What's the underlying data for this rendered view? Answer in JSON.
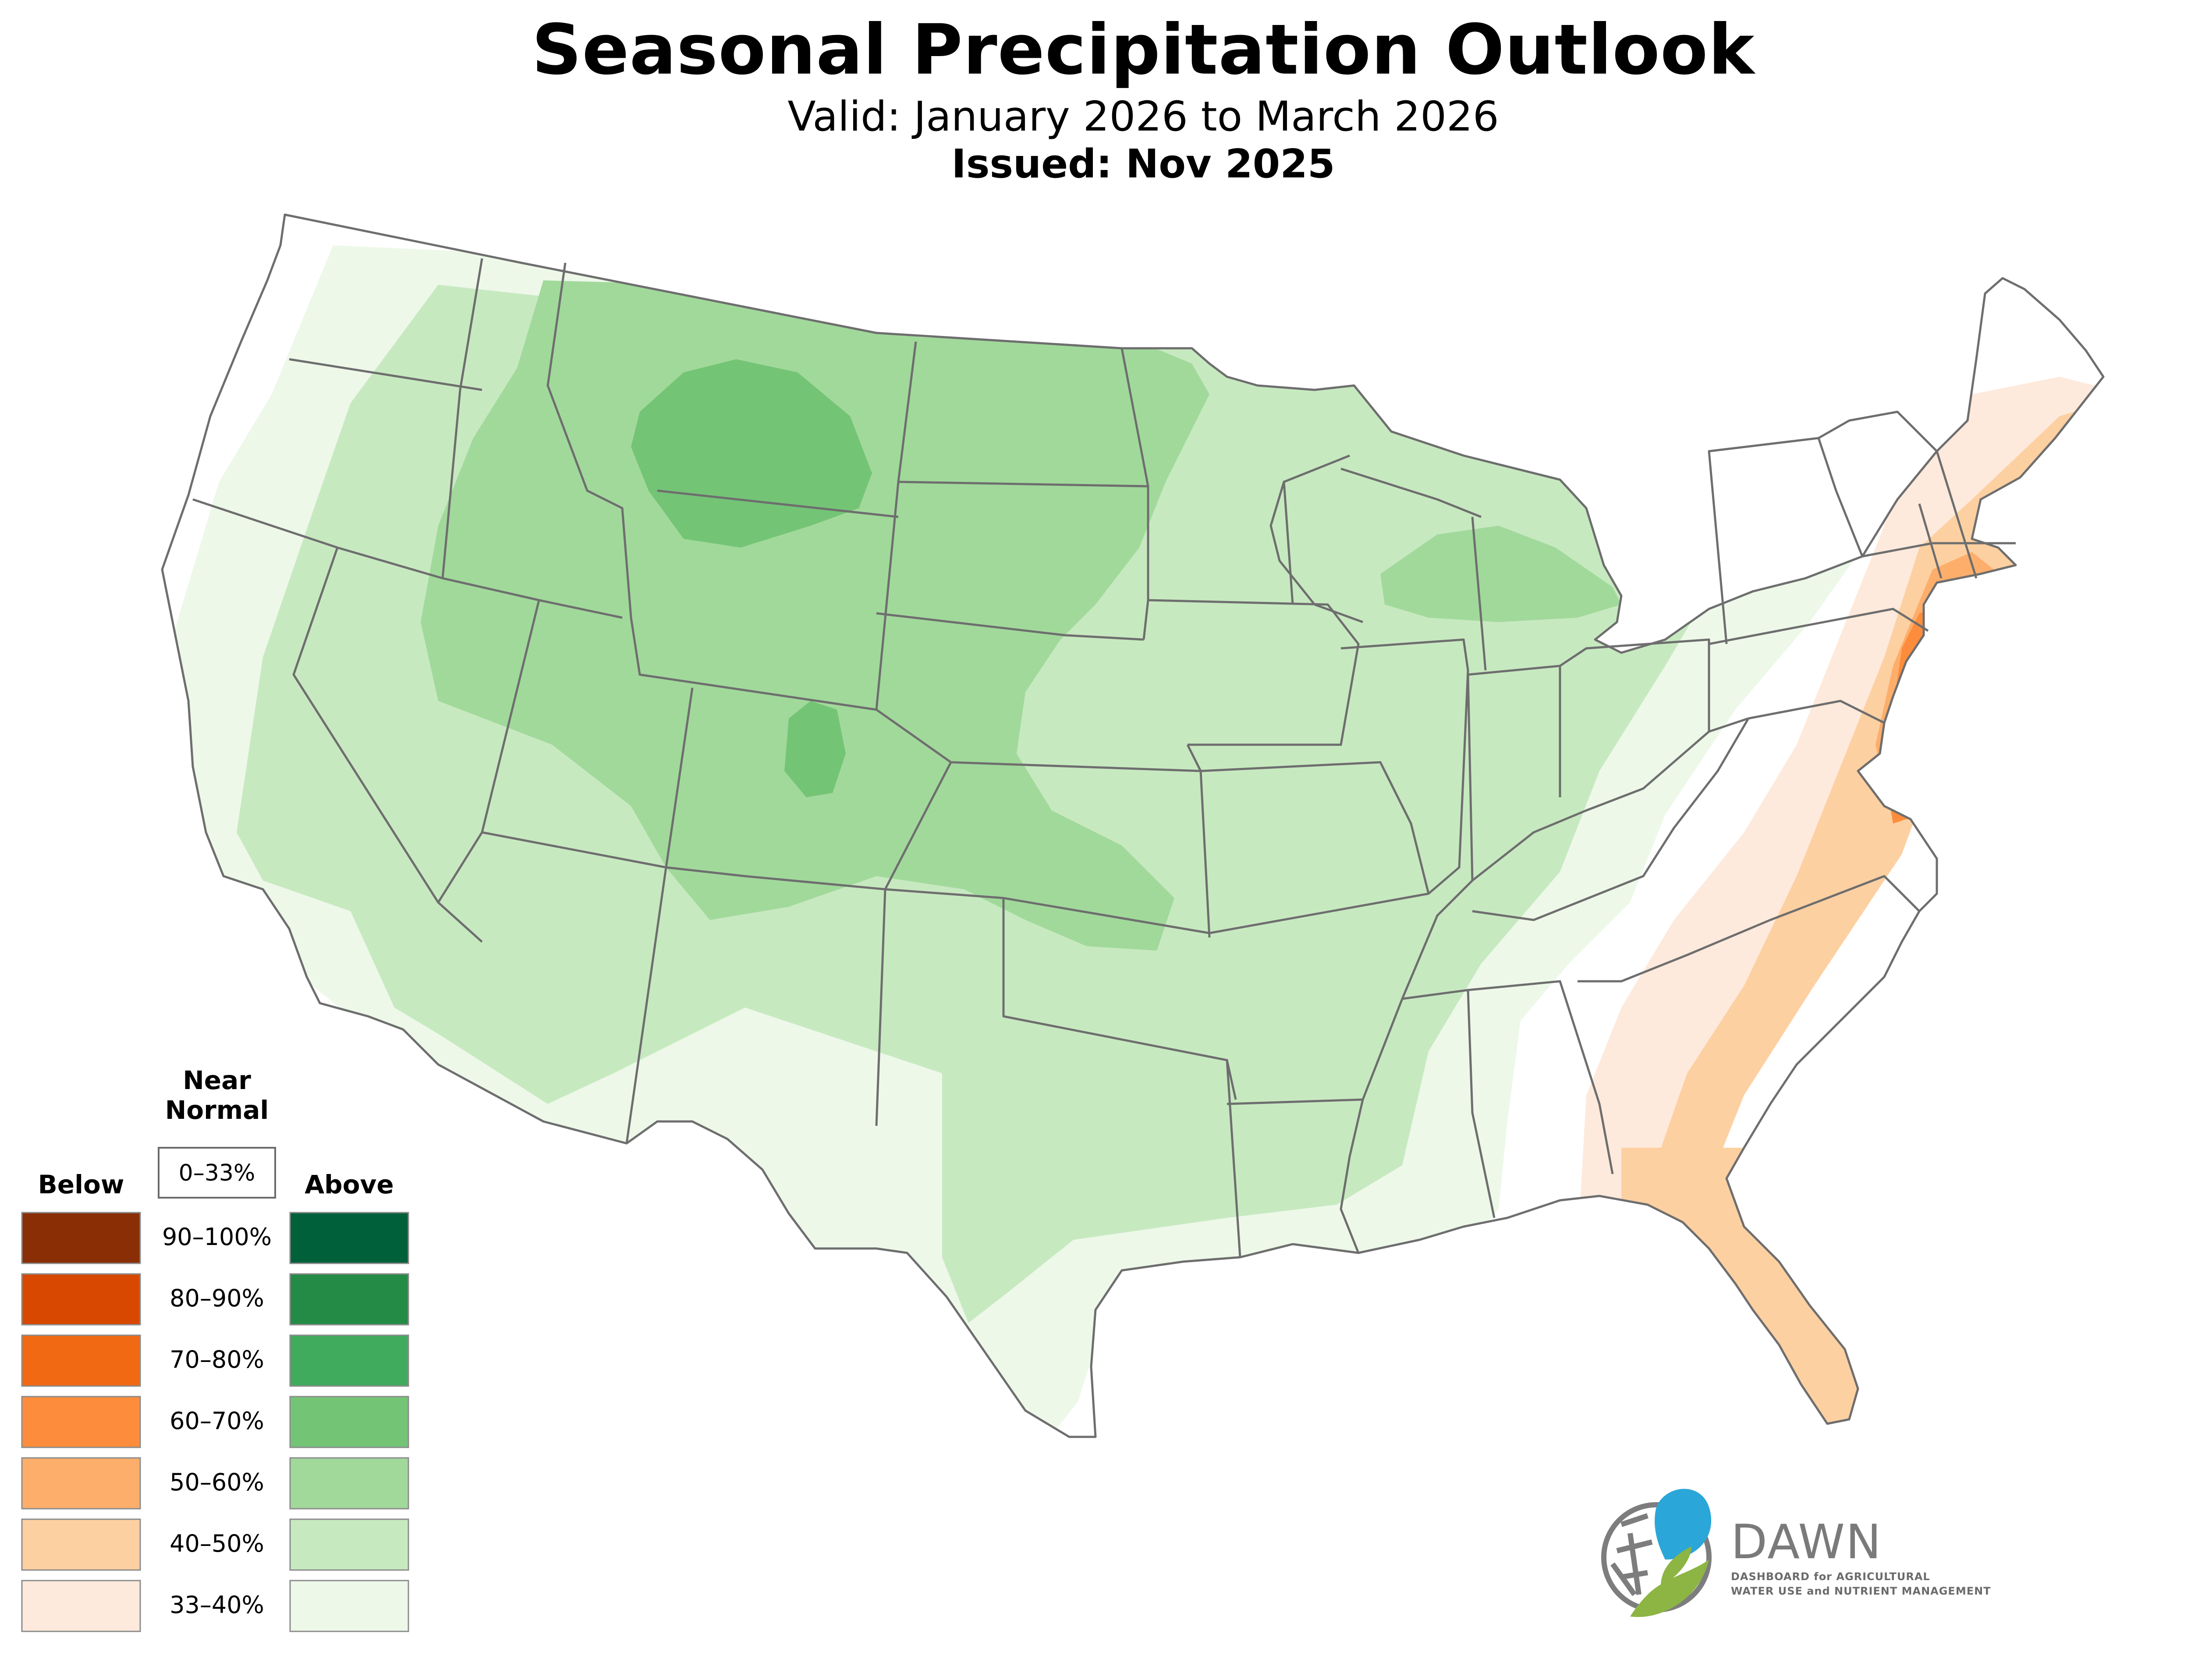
{
  "title": "Seasonal Precipitation Outlook",
  "subtitle": "Valid: January 2026 to March 2026",
  "issued": "Issued: Nov 2025",
  "legend": {
    "near_normal_label_1": "Near",
    "near_normal_label_2": "Normal",
    "near_normal_range": "0–33%",
    "below_label": "Below",
    "above_label": "Above",
    "classes": [
      {
        "range": "90–100%",
        "below": "#8a2e05",
        "above": "#00603a"
      },
      {
        "range": "80–90%",
        "below": "#d94801",
        "above": "#238b45"
      },
      {
        "range": "70–80%",
        "below": "#f16913",
        "above": "#41ab5d"
      },
      {
        "range": "60–70%",
        "below": "#fd8d3c",
        "above": "#74c476"
      },
      {
        "range": "50–60%",
        "below": "#fdae6b",
        "above": "#a1d99b"
      },
      {
        "range": "40–50%",
        "below": "#fdd0a2",
        "above": "#c7e9c0"
      },
      {
        "range": "33–40%",
        "below": "#feeadc",
        "above": "#edf8e9"
      }
    ]
  },
  "logo": {
    "name": "DAWN",
    "line1": "DASHBOARD for AGRICULTURAL",
    "line2": "WATER USE and NUTRIENT MANAGEMENT"
  },
  "colors": {
    "border": "#6e6e6e",
    "logo_blue": "#2ba6d8",
    "logo_green": "#8cb544",
    "logo_gray": "#7d7d7d"
  }
}
